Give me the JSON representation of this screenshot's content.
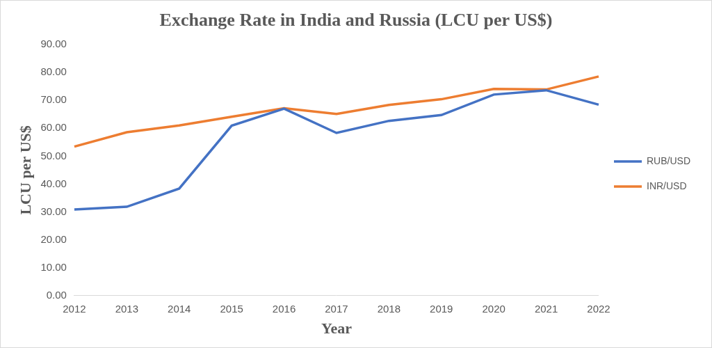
{
  "chart_data": {
    "type": "line",
    "title": "Exchange Rate in India and Russia (LCU per US$)",
    "x_label": "Year",
    "y_label": "LCU per US$",
    "categories": [
      "2012",
      "2013",
      "2014",
      "2015",
      "2016",
      "2017",
      "2018",
      "2019",
      "2020",
      "2021",
      "2022"
    ],
    "series": [
      {
        "name": "RUB/USD",
        "color": "#4472c4",
        "values": [
          30.84,
          31.84,
          38.38,
          60.94,
          67.06,
          58.34,
          62.67,
          64.74,
          72.1,
          73.65,
          68.48
        ]
      },
      {
        "name": "INR/USD",
        "color": "#ed7d31",
        "values": [
          53.44,
          58.6,
          61.03,
          64.15,
          67.2,
          65.12,
          68.39,
          70.42,
          74.1,
          73.92,
          78.6
        ]
      }
    ],
    "ylim": [
      0,
      90
    ],
    "yticks": [
      {
        "value": 0,
        "label": "0.00"
      },
      {
        "value": 10,
        "label": "10.00"
      },
      {
        "value": 20,
        "label": "20.00"
      },
      {
        "value": 30,
        "label": "30.00"
      },
      {
        "value": 40,
        "label": "40.00"
      },
      {
        "value": 50,
        "label": "50.00"
      },
      {
        "value": 60,
        "label": "60.00"
      },
      {
        "value": 70,
        "label": "70.00"
      },
      {
        "value": 80,
        "label": "80.00"
      },
      {
        "value": 90,
        "label": "90.00"
      }
    ],
    "grid": false,
    "legend": "right"
  }
}
